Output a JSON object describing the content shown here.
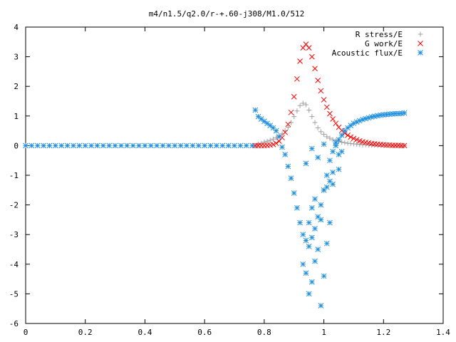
{
  "chart_data": {
    "type": "scatter",
    "title": "m4/n1.5/q2.0/r-+.60-j308/M1.0/512",
    "xlabel": "",
    "ylabel": "",
    "xlim": [
      0,
      1.4
    ],
    "ylim": [
      -6,
      4
    ],
    "x_ticks": [
      "0",
      "0.2",
      "0.4",
      "0.6",
      "0.8",
      "1",
      "1.2",
      "1.4"
    ],
    "y_ticks": [
      "4",
      "3",
      "2",
      "1",
      "0",
      "-1",
      "-2",
      "-3",
      "-4",
      "-5",
      "-6"
    ],
    "grid": false,
    "legend_position": "top-right",
    "series": [
      {
        "name": "R stress/E",
        "marker": "plus",
        "color": "#a0a0a0",
        "x": [
          0.77,
          0.78,
          0.79,
          0.8,
          0.81,
          0.82,
          0.83,
          0.84,
          0.85,
          0.86,
          0.87,
          0.88,
          0.89,
          0.9,
          0.91,
          0.92,
          0.93,
          0.94,
          0.95,
          0.96,
          0.97,
          0.98,
          0.99,
          1.0,
          1.01,
          1.02,
          1.03,
          1.04,
          1.05,
          1.06,
          1.07,
          1.08,
          1.09,
          1.1,
          1.11,
          1.12,
          1.13,
          1.14,
          1.15,
          1.16,
          1.17,
          1.18,
          1.19,
          1.2,
          1.21,
          1.22,
          1.23,
          1.24,
          1.25,
          1.26,
          1.27
        ],
        "y": [
          0.0,
          0.05,
          0.08,
          0.12,
          0.15,
          0.18,
          0.22,
          0.27,
          0.33,
          0.4,
          0.5,
          0.62,
          0.78,
          0.98,
          1.17,
          1.35,
          1.43,
          1.38,
          1.2,
          0.98,
          0.78,
          0.6,
          0.47,
          0.38,
          0.3,
          0.25,
          0.2,
          0.17,
          0.14,
          0.12,
          0.1,
          0.08,
          0.07,
          0.06,
          0.05,
          0.04,
          0.03,
          0.03,
          0.02,
          0.02,
          0.02,
          0.01,
          0.01,
          0.01,
          0.01,
          0.01,
          0.0,
          0.0,
          0.0,
          0.0,
          0.0
        ]
      },
      {
        "name": "G work/E",
        "marker": "cross",
        "color": "#ff0000",
        "x": [
          0.77,
          0.78,
          0.79,
          0.8,
          0.81,
          0.82,
          0.83,
          0.84,
          0.85,
          0.86,
          0.87,
          0.88,
          0.89,
          0.9,
          0.91,
          0.92,
          0.93,
          0.94,
          0.95,
          0.96,
          0.97,
          0.98,
          0.99,
          1.0,
          1.01,
          1.02,
          1.03,
          1.04,
          1.05,
          1.06,
          1.07,
          1.08,
          1.09,
          1.1,
          1.11,
          1.12,
          1.13,
          1.14,
          1.15,
          1.16,
          1.17,
          1.18,
          1.19,
          1.2,
          1.21,
          1.22,
          1.23,
          1.24,
          1.25,
          1.26,
          1.27
        ],
        "y": [
          0.0,
          0.0,
          0.0,
          0.0,
          0.01,
          0.02,
          0.04,
          0.08,
          0.15,
          0.27,
          0.45,
          0.72,
          1.12,
          1.65,
          2.25,
          2.85,
          3.3,
          3.42,
          3.3,
          3.0,
          2.6,
          2.2,
          1.85,
          1.55,
          1.3,
          1.08,
          0.9,
          0.75,
          0.62,
          0.51,
          0.42,
          0.35,
          0.29,
          0.24,
          0.2,
          0.16,
          0.13,
          0.11,
          0.09,
          0.07,
          0.06,
          0.05,
          0.04,
          0.03,
          0.02,
          0.02,
          0.01,
          0.01,
          0.01,
          0.0,
          0.0
        ]
      },
      {
        "name": "Acoustic flux/E",
        "marker": "star",
        "color": "#1f8fdf",
        "x": [
          0.0,
          0.02,
          0.04,
          0.06,
          0.08,
          0.1,
          0.12,
          0.14,
          0.16,
          0.18,
          0.2,
          0.22,
          0.24,
          0.26,
          0.28,
          0.3,
          0.32,
          0.34,
          0.36,
          0.38,
          0.4,
          0.42,
          0.44,
          0.46,
          0.48,
          0.5,
          0.52,
          0.54,
          0.56,
          0.58,
          0.6,
          0.62,
          0.64,
          0.66,
          0.68,
          0.7,
          0.72,
          0.74,
          0.76,
          0.77,
          0.78,
          0.79,
          0.8,
          0.81,
          0.82,
          0.83,
          0.84,
          0.85,
          0.86,
          0.87,
          0.88,
          0.89,
          0.9,
          0.91,
          0.92,
          0.93,
          0.94,
          0.95,
          0.96,
          0.97,
          0.98,
          0.99,
          1.0,
          1.01,
          1.02,
          1.03,
          1.04,
          1.05,
          1.06,
          1.07,
          1.08,
          1.09,
          1.1,
          1.11,
          1.12,
          1.13,
          1.14,
          1.15,
          1.16,
          1.17,
          1.18,
          1.19,
          1.2,
          1.21,
          1.22,
          1.23,
          1.24,
          1.25,
          1.26,
          1.27,
          0.93,
          0.94,
          0.95,
          0.96,
          0.97,
          0.98,
          0.99,
          1.0,
          0.95,
          0.96,
          0.97,
          0.99,
          1.0,
          1.01,
          1.02,
          1.03,
          1.05,
          1.06,
          1.04,
          1.0,
          0.98,
          0.96,
          0.94,
          1.02,
          1.03,
          1.05,
          1.01
        ],
        "y": [
          0,
          0,
          0,
          0,
          0,
          0,
          0,
          0,
          0,
          0,
          0,
          0,
          0,
          0,
          0,
          0,
          0,
          0,
          0,
          0,
          0,
          0,
          0,
          0,
          0,
          0,
          0,
          0,
          0,
          0,
          0,
          0,
          0,
          0,
          0,
          0,
          0,
          0,
          0,
          1.2,
          0.98,
          0.9,
          0.82,
          0.75,
          0.68,
          0.6,
          0.5,
          0.3,
          -0.05,
          -0.3,
          -0.7,
          -1.1,
          -1.6,
          -2.1,
          -2.6,
          -3.0,
          -3.2,
          -3.4,
          -3.1,
          -2.8,
          -2.4,
          -2.0,
          -1.5,
          -1.0,
          -0.5,
          -0.2,
          0.0,
          0.2,
          0.35,
          0.5,
          0.6,
          0.68,
          0.75,
          0.8,
          0.84,
          0.88,
          0.91,
          0.94,
          0.97,
          0.99,
          1.01,
          1.03,
          1.04,
          1.05,
          1.06,
          1.07,
          1.08,
          1.08,
          1.09,
          1.1,
          -4.0,
          -4.3,
          -5.0,
          -4.6,
          -3.9,
          -3.5,
          -2.5,
          -1.5,
          -2.6,
          -2.1,
          -1.8,
          -5.4,
          -4.4,
          -3.3,
          -2.6,
          -1.3,
          -0.8,
          -0.2,
          0.1,
          0.05,
          -0.4,
          -0.1,
          -0.6,
          -1.2,
          -0.9,
          -0.3,
          -1.4
        ]
      }
    ]
  }
}
